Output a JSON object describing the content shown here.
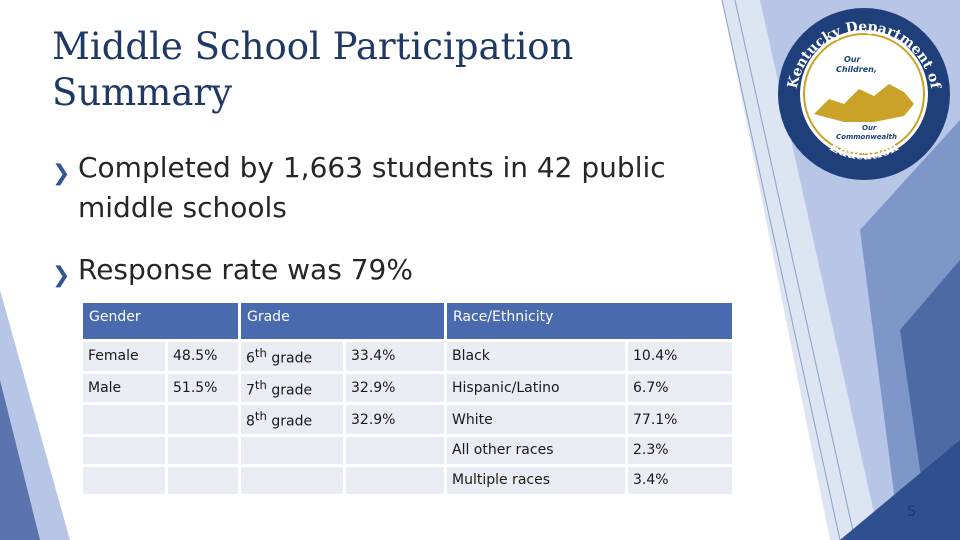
{
  "slide": {
    "title": "Middle School Participation Summary",
    "bullets": [
      "Completed by 1,663 students in 42 public middle schools",
      "Response rate was 79%"
    ],
    "page_number": "5"
  },
  "logo": {
    "top_text": "Kentucky Department of",
    "inner_line1": "Our",
    "inner_line2": "Children,",
    "inner_line3": "Our",
    "inner_line4": "Commonwealth",
    "bottom_text": "Education"
  },
  "table": {
    "headers": {
      "gender": "Gender",
      "grade": "Grade",
      "race": "Race/Ethnicity"
    },
    "rows": [
      [
        "Female",
        "48.5%",
        "6th grade",
        "33.4%",
        "Black",
        "10.4%"
      ],
      [
        "Male",
        "51.5%",
        "7th grade",
        "32.9%",
        "Hispanic/Latino",
        "6.7%"
      ],
      [
        "",
        "",
        "8th grade",
        "32.9%",
        "White",
        "77.1%"
      ],
      [
        "",
        "",
        "",
        "",
        "All other races",
        "2.3%"
      ],
      [
        "",
        "",
        "",
        "",
        "Multiple races",
        "3.4%"
      ]
    ]
  },
  "colors": {
    "title": "#1f3864",
    "table_header": "#4a6ab0",
    "table_cell": "#e9ecf3",
    "accent": "#2f5597",
    "logo_gold": "#c9a227"
  },
  "icons": {
    "bullet": "bullet-icon",
    "logo": "kde-seal-icon"
  }
}
